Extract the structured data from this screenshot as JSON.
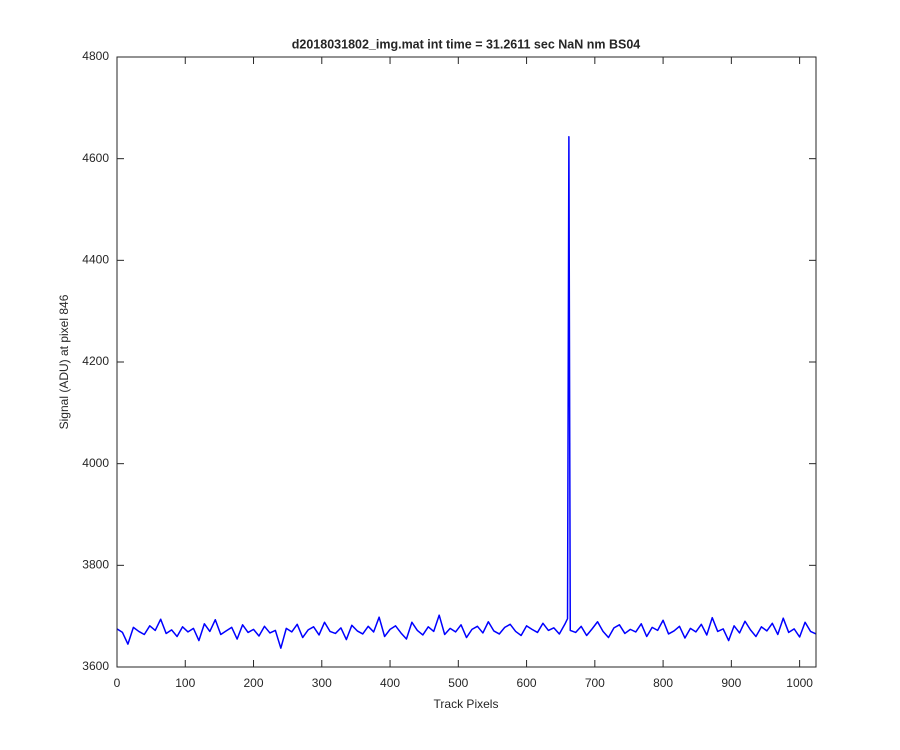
{
  "chart_data": {
    "type": "line",
    "title": "d2018031802_img.mat int time = 31.2611 sec  NaN nm BS04",
    "xlabel": "Track Pixels",
    "ylabel": "Signal (ADU) at pixel 846",
    "color": "#0000ff",
    "xlim": [
      0,
      1024
    ],
    "ylim": [
      3600,
      4800
    ],
    "xticks": [
      0,
      100,
      200,
      300,
      400,
      500,
      600,
      700,
      800,
      900,
      1000
    ],
    "yticks": [
      3600,
      3800,
      4000,
      4200,
      4400,
      4600,
      4800
    ],
    "x": [
      0,
      8,
      16,
      24,
      32,
      40,
      48,
      56,
      64,
      72,
      80,
      88,
      96,
      104,
      112,
      120,
      128,
      136,
      144,
      152,
      160,
      168,
      176,
      184,
      192,
      200,
      208,
      216,
      224,
      232,
      240,
      248,
      256,
      264,
      272,
      280,
      288,
      296,
      304,
      312,
      320,
      328,
      336,
      344,
      352,
      360,
      368,
      376,
      384,
      392,
      400,
      408,
      416,
      424,
      432,
      440,
      448,
      456,
      464,
      472,
      480,
      488,
      496,
      504,
      512,
      520,
      528,
      536,
      544,
      552,
      560,
      568,
      576,
      584,
      592,
      600,
      608,
      616,
      624,
      632,
      640,
      648,
      656,
      660,
      662,
      664,
      672,
      680,
      688,
      696,
      704,
      712,
      720,
      728,
      736,
      744,
      752,
      760,
      768,
      776,
      784,
      792,
      800,
      808,
      816,
      824,
      832,
      840,
      848,
      856,
      864,
      872,
      880,
      888,
      896,
      904,
      912,
      920,
      928,
      936,
      944,
      952,
      960,
      968,
      976,
      984,
      992,
      1000,
      1008,
      1016,
      1024
    ],
    "values": [
      3675,
      3668,
      3645,
      3678,
      3670,
      3664,
      3681,
      3672,
      3694,
      3666,
      3673,
      3660,
      3679,
      3669,
      3676,
      3652,
      3685,
      3670,
      3693,
      3664,
      3671,
      3678,
      3655,
      3683,
      3668,
      3674,
      3661,
      3680,
      3667,
      3672,
      3637,
      3676,
      3669,
      3684,
      3658,
      3673,
      3679,
      3663,
      3688,
      3670,
      3666,
      3677,
      3654,
      3682,
      3671,
      3665,
      3680,
      3669,
      3698,
      3660,
      3674,
      3681,
      3667,
      3655,
      3688,
      3672,
      3663,
      3679,
      3670,
      3702,
      3664,
      3676,
      3669,
      3683,
      3658,
      3674,
      3680,
      3667,
      3689,
      3671,
      3665,
      3678,
      3684,
      3670,
      3662,
      3681,
      3674,
      3668,
      3686,
      3672,
      3677,
      3665,
      3684,
      3695,
      4643,
      3672,
      3668,
      3680,
      3662,
      3675,
      3689,
      3670,
      3658,
      3677,
      3683,
      3666,
      3674,
      3669,
      3685,
      3660,
      3678,
      3672,
      3692,
      3665,
      3671,
      3680,
      3657,
      3676,
      3669,
      3684,
      3663,
      3697,
      3670,
      3675,
      3652,
      3681,
      3667,
      3690,
      3673,
      3660,
      3679,
      3671,
      3686,
      3664,
      3696,
      3668,
      3675,
      3659,
      3688,
      3670,
      3665
    ],
    "grid": false
  }
}
